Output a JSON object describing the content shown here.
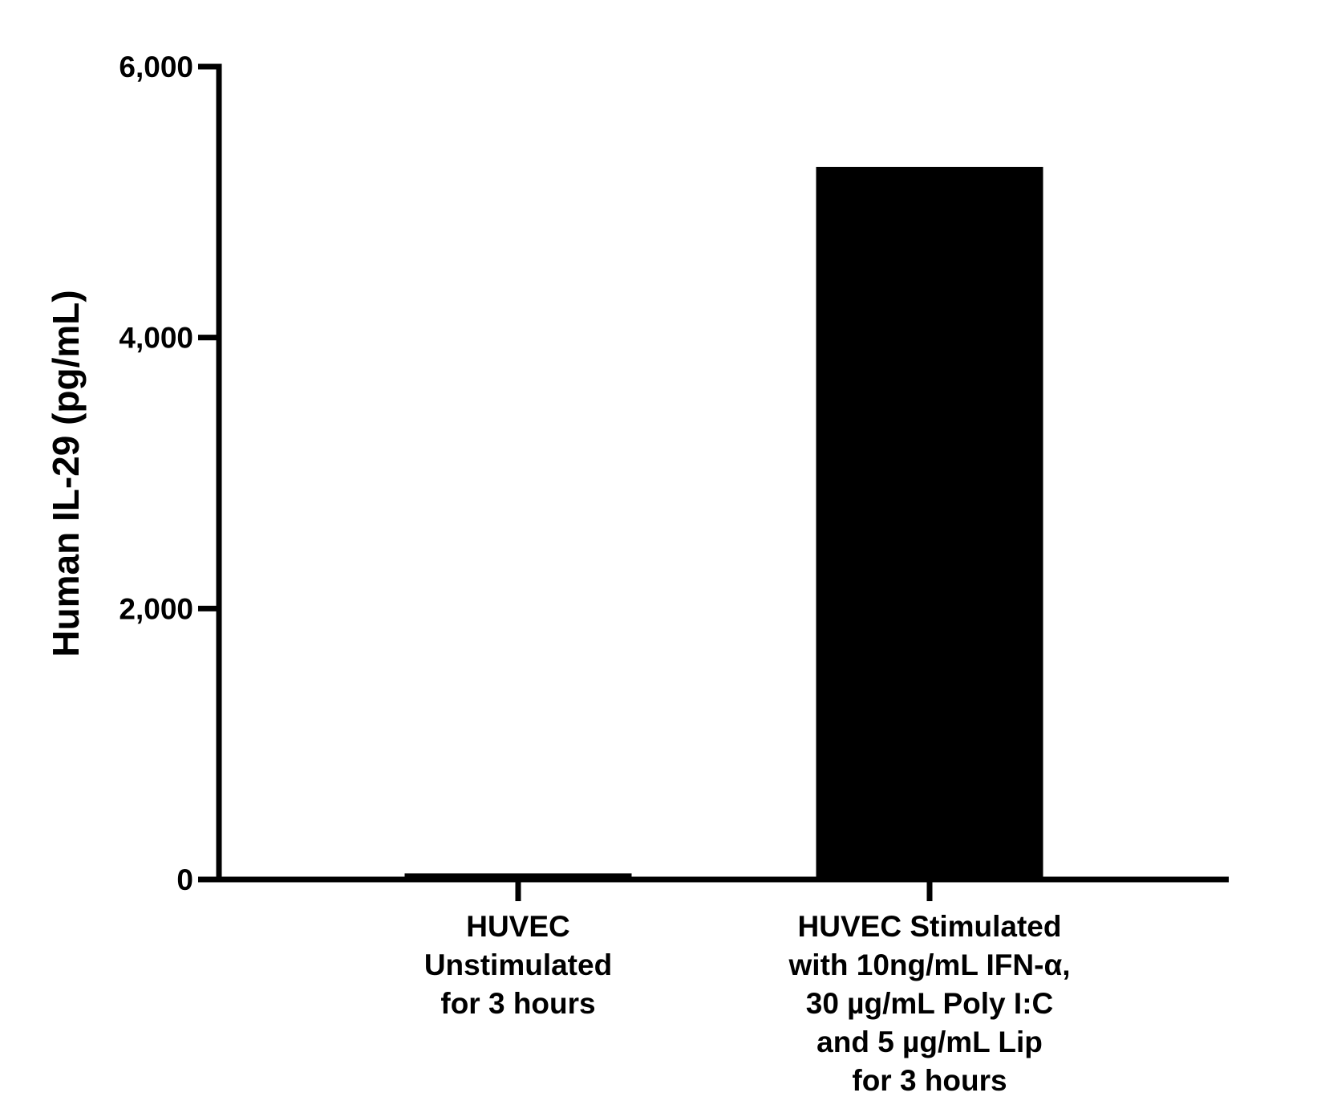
{
  "chart_data": {
    "type": "bar",
    "ylabel": "Human IL-29 (pg/mL)",
    "ylim": [
      0,
      6000
    ],
    "yticks": [
      0,
      2000,
      4000,
      6000
    ],
    "ytick_labels": [
      "0",
      "2,000",
      "4,000",
      "6,000"
    ],
    "categories": [
      [
        "HUVEC",
        "Unstimulated",
        "for 3 hours"
      ],
      [
        "HUVEC Stimulated",
        "with 10ng/mL IFN-α,",
        "30 µg/mL Poly I:C",
        "and 5 µg/mL Lip",
        "for 3 hours"
      ]
    ],
    "values": [
      45,
      5260
    ],
    "colors": {
      "bar": "#000000",
      "axis": "#000000"
    },
    "grid": false,
    "legend": "none"
  }
}
